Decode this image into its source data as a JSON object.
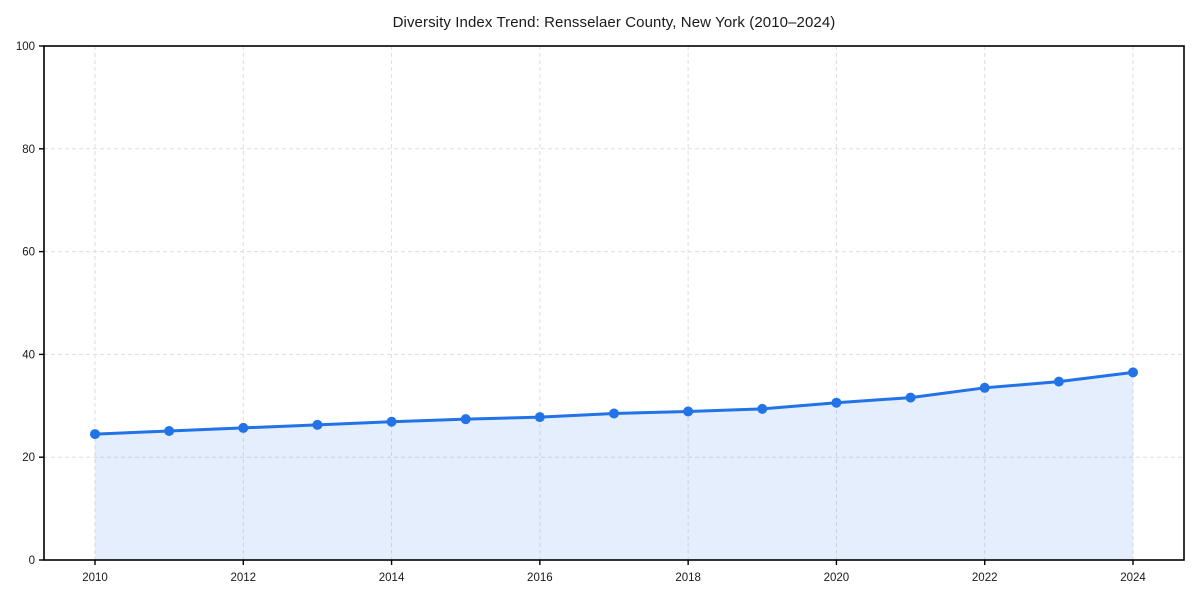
{
  "chart_data": {
    "type": "area",
    "title": "Diversity Index Trend: Rensselaer County, New York (2010–2024)",
    "x": [
      2010,
      2011,
      2012,
      2013,
      2014,
      2015,
      2016,
      2017,
      2018,
      2019,
      2020,
      2021,
      2022,
      2023,
      2024
    ],
    "series": [
      {
        "name": "Diversity Index",
        "values": [
          24.5,
          25.1,
          25.7,
          26.3,
          26.9,
          27.4,
          27.8,
          28.5,
          28.9,
          29.4,
          30.6,
          31.6,
          33.5,
          34.7,
          36.5
        ]
      }
    ],
    "xlabel": "",
    "ylabel": "",
    "ylim": [
      0,
      100
    ],
    "yticks": [
      0,
      20,
      40,
      60,
      80,
      100
    ],
    "xticks": [
      2010,
      2012,
      2014,
      2016,
      2018,
      2020,
      2022,
      2024
    ],
    "grid": true,
    "grid_style": "dashed",
    "legend": "none",
    "marker": "circle",
    "colors": {
      "line": "#2272e8",
      "marker": "#2272e8",
      "fill": "rgba(34,114,232,0.12)",
      "grid": "#dedede",
      "spine": "#000000",
      "tick_text": "#1a1a1a",
      "background": "#ffffff"
    }
  }
}
